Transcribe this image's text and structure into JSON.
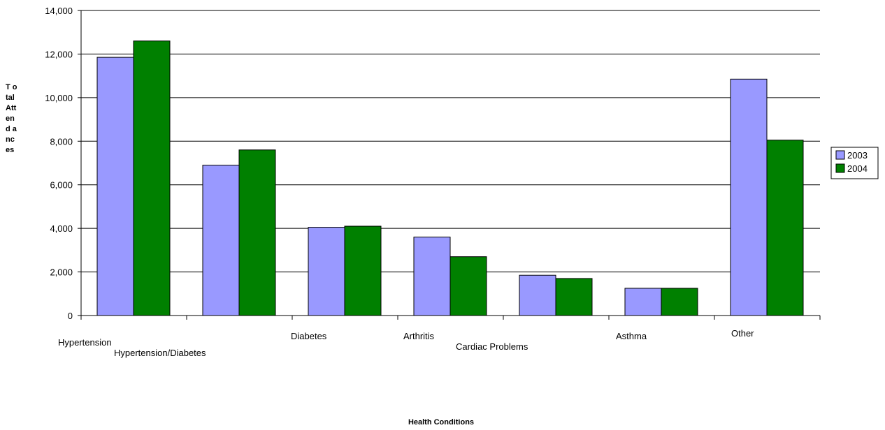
{
  "chart_data": {
    "type": "bar",
    "title": "",
    "xlabel": "Health Conditions",
    "ylabel_lines": [
      "T o",
      "tal",
      "Att",
      "en",
      "d a",
      "nc",
      "es"
    ],
    "categories": [
      "Hypertension",
      "Hypertension/Diabetes",
      "Diabetes",
      "Arthritis",
      "Cardiac Problems",
      "Asthma",
      "Other"
    ],
    "series": [
      {
        "name": "2003",
        "color": "#9999ff",
        "values": [
          11850,
          6900,
          4050,
          3600,
          1850,
          1250,
          10850
        ]
      },
      {
        "name": "2004",
        "color": "#008000",
        "values": [
          12600,
          7600,
          4100,
          2700,
          1700,
          1250,
          8050
        ]
      }
    ],
    "ylim": [
      0,
      14000
    ],
    "yticks": [
      "0",
      "2,000",
      "4,000",
      "6,000",
      "8,000",
      "10,000",
      "12,000",
      "14,000"
    ],
    "grid": true,
    "legend_position": "right"
  }
}
